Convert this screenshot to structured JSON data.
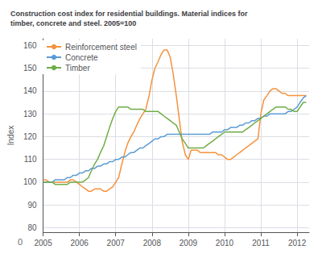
{
  "chart_data": {
    "type": "line",
    "title": "Construction cost index for residential buildings. Material indices for\ntimber, concrete and steel. 2005=100",
    "y_label": "Index",
    "annotations": [
      "0"
    ],
    "x": [
      2005.0,
      2005.08,
      2005.17,
      2005.25,
      2005.33,
      2005.42,
      2005.5,
      2005.58,
      2005.67,
      2005.75,
      2005.83,
      2005.92,
      2006.0,
      2006.08,
      2006.17,
      2006.25,
      2006.33,
      2006.42,
      2006.5,
      2006.58,
      2006.67,
      2006.75,
      2006.83,
      2006.92,
      2007.0,
      2007.08,
      2007.17,
      2007.25,
      2007.33,
      2007.42,
      2007.5,
      2007.58,
      2007.67,
      2007.75,
      2007.83,
      2007.92,
      2008.0,
      2008.08,
      2008.17,
      2008.25,
      2008.33,
      2008.42,
      2008.5,
      2008.58,
      2008.67,
      2008.75,
      2008.83,
      2008.92,
      2009.0,
      2009.08,
      2009.17,
      2009.25,
      2009.33,
      2009.42,
      2009.5,
      2009.58,
      2009.67,
      2009.75,
      2009.83,
      2009.92,
      2010.0,
      2010.08,
      2010.17,
      2010.25,
      2010.33,
      2010.42,
      2010.5,
      2010.58,
      2010.67,
      2010.75,
      2010.83,
      2010.92,
      2011.0,
      2011.08,
      2011.17,
      2011.25,
      2011.33,
      2011.42,
      2011.5,
      2011.58,
      2011.67,
      2011.75,
      2011.83,
      2011.92,
      2012.0,
      2012.08,
      2012.17,
      2012.25
    ],
    "series": [
      {
        "name": "Reinforcement steel",
        "color": "#f5923e",
        "values": [
          101,
          101,
          100,
          100,
          100,
          100,
          100,
          100,
          100,
          101,
          101,
          100,
          99,
          98,
          97,
          96,
          96,
          97,
          97,
          97,
          96,
          96,
          97,
          98,
          100,
          102,
          108,
          113,
          117,
          120,
          122,
          125,
          128,
          130,
          132,
          138,
          145,
          150,
          153,
          156,
          158,
          158,
          155,
          148,
          138,
          128,
          118,
          112,
          110,
          114,
          114,
          114,
          113,
          113,
          113,
          113,
          113,
          113,
          112,
          112,
          111,
          110,
          110,
          111,
          112,
          113,
          114,
          115,
          116,
          117,
          118,
          119,
          130,
          136,
          138,
          140,
          141,
          141,
          140,
          139,
          139,
          138,
          138,
          138,
          138,
          138,
          138,
          138
        ]
      },
      {
        "name": "Concrete",
        "color": "#5b9bd5",
        "values": [
          100,
          100,
          100,
          100,
          101,
          101,
          101,
          101,
          102,
          102,
          103,
          103,
          104,
          104,
          105,
          105,
          106,
          106,
          107,
          107,
          108,
          108,
          109,
          109,
          110,
          110,
          111,
          111,
          112,
          113,
          113,
          114,
          115,
          115,
          116,
          117,
          118,
          119,
          119,
          120,
          120,
          121,
          121,
          121,
          121,
          121,
          121,
          121,
          121,
          121,
          121,
          121,
          121,
          121,
          121,
          121,
          122,
          122,
          122,
          122,
          123,
          123,
          124,
          124,
          124,
          125,
          125,
          126,
          126,
          127,
          127,
          128,
          128,
          129,
          129,
          130,
          130,
          130,
          130,
          130,
          130,
          131,
          131,
          132,
          133,
          135,
          137,
          138
        ]
      },
      {
        "name": "Timber",
        "color": "#70ad47",
        "values": [
          100,
          100,
          100,
          100,
          99,
          99,
          99,
          99,
          99,
          100,
          100,
          100,
          100,
          100,
          101,
          102,
          105,
          108,
          110,
          113,
          116,
          120,
          124,
          128,
          131,
          133,
          133,
          133,
          133,
          132,
          132,
          132,
          132,
          132,
          131,
          131,
          131,
          131,
          131,
          130,
          129,
          128,
          127,
          126,
          125,
          122,
          119,
          117,
          115,
          115,
          115,
          115,
          115,
          115,
          116,
          117,
          118,
          119,
          120,
          121,
          122,
          122,
          122,
          122,
          122,
          122,
          122,
          123,
          124,
          125,
          126,
          127,
          128,
          129,
          130,
          131,
          132,
          133,
          133,
          133,
          133,
          132,
          132,
          131,
          131,
          133,
          135,
          135
        ]
      }
    ],
    "xlim": [
      2005.0,
      2012.33
    ],
    "ylim": [
      78,
      163
    ],
    "xticks": [
      2005,
      2006,
      2007,
      2008,
      2009,
      2010,
      2011,
      2012
    ],
    "yticks": [
      80,
      90,
      100,
      110,
      120,
      130,
      140,
      150,
      160
    ],
    "grid": true,
    "legend": "upper left"
  }
}
